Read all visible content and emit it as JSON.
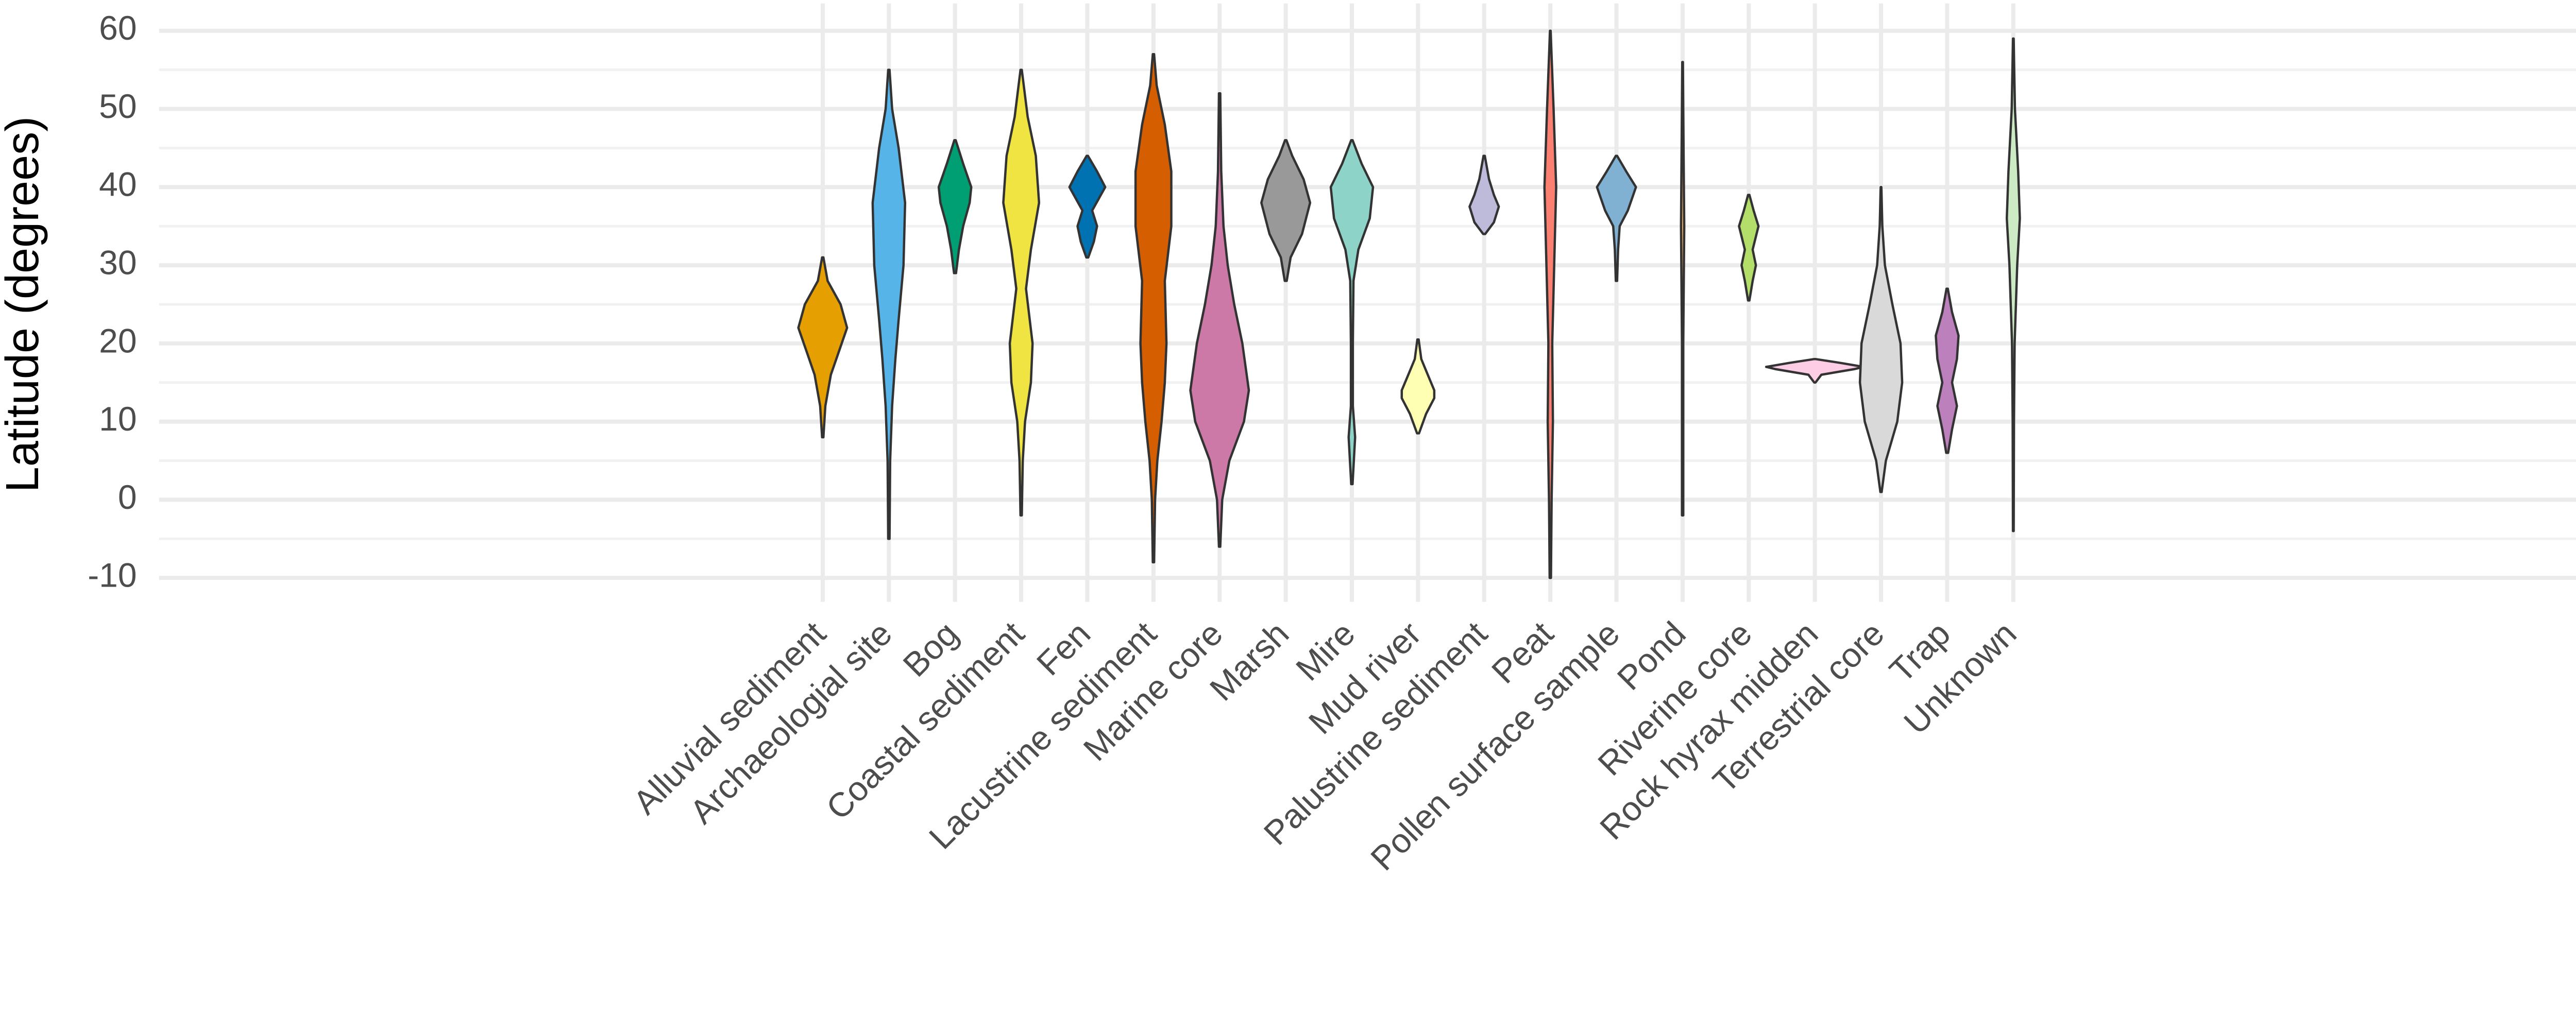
{
  "chart_data": {
    "type": "violin",
    "y_label": "Latitude (degrees)",
    "ylim": [
      -10,
      60
    ],
    "yticks": [
      -10,
      0,
      10,
      20,
      30,
      40,
      50,
      60
    ],
    "grid": true,
    "categories": [
      "Alluvial sediment",
      "Archaeologial site",
      "Bog",
      "Coastal sediment",
      "Fen",
      "Lacustrine sediment",
      "Marine core",
      "Marsh",
      "Mire",
      "Mud river",
      "Palustrine sediment",
      "Peat",
      "Pollen surface sample",
      "Pond",
      "Riverine core",
      "Rock hyrax midden",
      "Terrestrial core",
      "Trap",
      "Unknown"
    ],
    "violins": [
      {
        "color": "#E69F00",
        "y": [
          8,
          12,
          16,
          19,
          22,
          25,
          28,
          31
        ],
        "density": [
          0.02,
          0.08,
          0.25,
          0.5,
          0.75,
          0.55,
          0.15,
          0.02
        ]
      },
      {
        "color": "#56B4E9",
        "y": [
          -5,
          5,
          12,
          18,
          23,
          30,
          38,
          45,
          50,
          55
        ],
        "density": [
          0.02,
          0.04,
          0.1,
          0.2,
          0.3,
          0.45,
          0.5,
          0.3,
          0.1,
          0.02
        ]
      },
      {
        "color": "#009E73",
        "y": [
          29,
          32,
          35,
          38,
          40,
          43,
          46
        ],
        "density": [
          0.03,
          0.12,
          0.25,
          0.45,
          0.5,
          0.25,
          0.02
        ]
      },
      {
        "color": "#F0E442",
        "y": [
          -2,
          5,
          10,
          15,
          20,
          27,
          32,
          38,
          44,
          49,
          55
        ],
        "density": [
          0.02,
          0.05,
          0.12,
          0.3,
          0.35,
          0.15,
          0.3,
          0.55,
          0.45,
          0.2,
          0.02
        ]
      },
      {
        "color": "#0072B2",
        "y": [
          31,
          33,
          35,
          37,
          40,
          42,
          44
        ],
        "density": [
          0.03,
          0.2,
          0.3,
          0.15,
          0.55,
          0.3,
          0.02
        ]
      },
      {
        "color": "#D55E00",
        "y": [
          -8,
          0,
          5,
          10,
          15,
          20,
          28,
          35,
          42,
          48,
          53,
          57
        ],
        "density": [
          0.02,
          0.05,
          0.12,
          0.25,
          0.35,
          0.4,
          0.35,
          0.55,
          0.55,
          0.35,
          0.1,
          0.02
        ]
      },
      {
        "color": "#CC79A7",
        "y": [
          -6,
          0,
          5,
          10,
          14,
          20,
          25,
          30,
          35,
          42,
          52
        ],
        "density": [
          0.02,
          0.08,
          0.3,
          0.75,
          0.9,
          0.7,
          0.45,
          0.25,
          0.12,
          0.05,
          0.02
        ]
      },
      {
        "color": "#999999",
        "y": [
          28,
          31,
          34,
          38,
          41,
          44,
          46
        ],
        "density": [
          0.03,
          0.15,
          0.5,
          0.75,
          0.55,
          0.2,
          0.02
        ]
      },
      {
        "color": "#8DD3C7",
        "y": [
          2,
          5,
          8,
          12,
          20,
          28,
          32,
          36,
          40,
          43,
          46
        ],
        "density": [
          0.02,
          0.06,
          0.1,
          0.03,
          0.03,
          0.05,
          0.2,
          0.55,
          0.65,
          0.3,
          0.02
        ]
      },
      {
        "color": "#FFFFB3",
        "y": [
          8.5,
          11,
          13,
          14,
          16,
          18,
          20.5
        ],
        "density": [
          0.03,
          0.25,
          0.5,
          0.5,
          0.3,
          0.1,
          0.02
        ]
      },
      {
        "color": "#BEBADA",
        "y": [
          34,
          35.5,
          37.5,
          39,
          41,
          44
        ],
        "density": [
          0.03,
          0.3,
          0.45,
          0.3,
          0.15,
          0.02
        ]
      },
      {
        "color": "#FB8072",
        "y": [
          -10,
          0,
          10,
          20,
          30,
          40,
          50,
          60
        ],
        "density": [
          0.02,
          0.04,
          0.08,
          0.06,
          0.12,
          0.18,
          0.1,
          0.01
        ]
      },
      {
        "color": "#80B1D3",
        "y": [
          28,
          32,
          35,
          37,
          40,
          42,
          44
        ],
        "density": [
          0.02,
          0.05,
          0.1,
          0.35,
          0.6,
          0.3,
          0.02
        ]
      },
      {
        "color": "#FDB462",
        "y": [
          -2,
          20,
          35,
          45,
          56
        ],
        "density": [
          0.02,
          0.02,
          0.05,
          0.03,
          0.01
        ]
      },
      {
        "color": "#B3DE69",
        "y": [
          25.5,
          28,
          30,
          32,
          35,
          37,
          39
        ],
        "density": [
          0.02,
          0.12,
          0.22,
          0.12,
          0.3,
          0.15,
          0.02
        ]
      },
      {
        "color": "#FCCDE5",
        "y": [
          15,
          16,
          16.7,
          17,
          17.5,
          18
        ],
        "density": [
          0.02,
          0.2,
          1.2,
          1.5,
          0.8,
          0.02
        ]
      },
      {
        "color": "#D9D9D9",
        "y": [
          1,
          5,
          10,
          15,
          20,
          25,
          30,
          35,
          40
        ],
        "density": [
          0.02,
          0.15,
          0.5,
          0.65,
          0.6,
          0.35,
          0.12,
          0.04,
          0.01
        ]
      },
      {
        "color": "#BC80BD",
        "y": [
          6,
          9,
          12,
          15,
          18,
          21,
          24,
          27
        ],
        "density": [
          0.03,
          0.15,
          0.3,
          0.15,
          0.3,
          0.35,
          0.15,
          0.02
        ]
      },
      {
        "color": "#CCEBC5",
        "y": [
          -4,
          10,
          20,
          30,
          36,
          42,
          50,
          59
        ],
        "density": [
          0.01,
          0.02,
          0.04,
          0.12,
          0.2,
          0.15,
          0.05,
          0.01
        ]
      }
    ]
  }
}
